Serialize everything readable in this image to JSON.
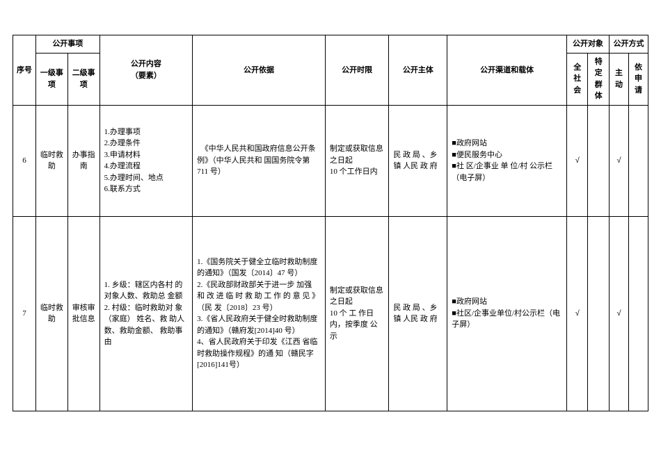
{
  "header": {
    "seq": "序号",
    "matter_group": "公开事项",
    "cat1": "一级事项",
    "cat2": "二级事项",
    "content": "公开内容\n（要素）",
    "basis": "公开依据",
    "timelimit": "公开时限",
    "subject": "公开主体",
    "channel": "公开渠道和载体",
    "target_group": "公开对象",
    "target1": "全社会",
    "target2": "特定群体",
    "method_group": "公开方式",
    "method1": "主动",
    "method2": "依申请"
  },
  "rows": [
    {
      "seq": "6",
      "cat1": "临时救助",
      "cat2": "办事指南",
      "content": "1.办理事项\n2.办理条件\n3.申请材料\n4.办理流程\n5.办理时间、地点\n6.联系方式",
      "basis": "　《中华人民共和国政府信息公开条例》（中华人民共和 国国务院令第 711 号）",
      "timelimit": "制定或获取信息之日起\n10 个工作日内",
      "subject": "民 政 局 、乡 镇 人民 政 府",
      "channel": "■政府网站\n■便民服务中心\n■社 区/企事业 单 位/村 公示栏（电子屏）",
      "target1": "√",
      "target2": "",
      "method1": "√",
      "method2": ""
    },
    {
      "seq": "7",
      "cat1": "临时救助",
      "cat2": "审核审批信息",
      "content": "1. 乡级：辖区内各村 的对象人数、救助总 金额\n2. 村级：临时救助对 象 （家庭） 姓名、救 助人数、救助金额、 救助事由",
      "basis": "1.《国务院关于健全立临时救助制度的通知》（国发〔2014〕47 号）\n2.《民政部财政部关于进一步 加强 和 改 进 临 时 救 助 工 作 的 意 见 》（民 发〔2018〕23 号）\n3.《省人民政府关于健全时救助制度的通知》（赣府发[2014]40 号）\n4、省人民政府关于印发《江西 省临时救助操作规程》的通 知（赣民字[2016]141号）",
      "timelimit": "制定或获取信息之日起\n10 个 工 作日 内，按季度 公 示",
      "subject": "民 政 局 、乡 镇 人民 政 府",
      "channel": "■政府网站\n■社区/企事业单位/村公示栏（电子屏）",
      "target1": "√",
      "target2": "",
      "method1": "√",
      "method2": ""
    }
  ],
  "check_symbol": "√"
}
